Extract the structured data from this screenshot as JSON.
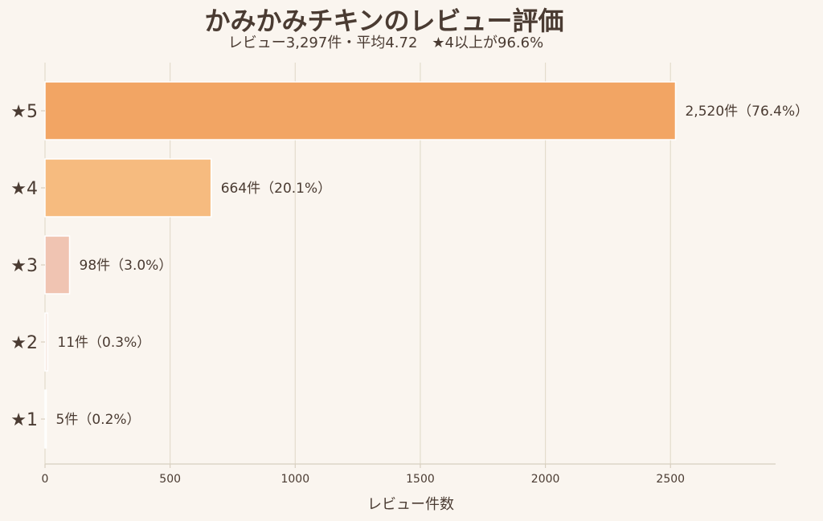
{
  "chart_data": {
    "type": "bar",
    "orientation": "horizontal",
    "title": "かみかみチキンのレビュー評価",
    "subtitle": "レビュー3,297件・平均4.72　★4以上が96.6%",
    "xlabel": "レビュー件数",
    "ylabel": "",
    "categories": [
      "★5",
      "★4",
      "★3",
      "★2",
      "★1"
    ],
    "values": [
      2520,
      664,
      98,
      11,
      5
    ],
    "data_labels": [
      "2,520件（76.4%）",
      "664件（20.1%）",
      "98件（3.0%）",
      "11件（0.3%）",
      "5件（0.2%）"
    ],
    "colors": [
      "#f2a564",
      "#f6bb7f",
      "#f0c4b2",
      "#f8ece6",
      "#fbf1ec"
    ],
    "xlim": [
      0,
      2920
    ],
    "xticks": [
      0,
      500,
      1000,
      1500,
      2000,
      2500
    ],
    "xtick_labels": [
      "0",
      "500",
      "1000",
      "1500",
      "2000",
      "2500"
    ],
    "grid": true,
    "legend": "none"
  }
}
